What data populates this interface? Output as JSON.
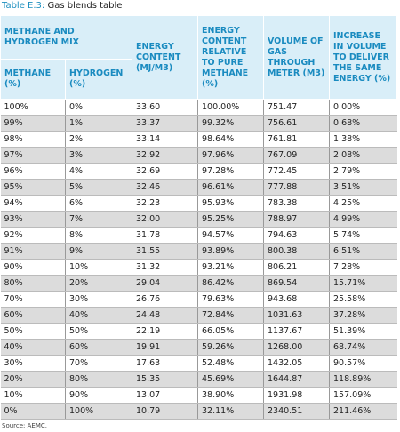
{
  "title": {
    "label": "Table E.3:",
    "text": "Gas blends table"
  },
  "table": {
    "group_header": "METHANE AND HYDROGEN MIX",
    "headers": [
      "METHANE (%)",
      "HYDROGEN (%)",
      "ENERGY CONTENT (MJ/M3)",
      "ENERGY CONTENT RELATIVE TO PURE METHANE (%)",
      "VOLUME OF GAS THROUGH METER (M3)",
      "INCREASE IN VOLUME TO DELIVER THE SAME ENERGY (%)"
    ],
    "rows": [
      [
        "100%",
        "0%",
        "33.60",
        "100.00%",
        "751.47",
        "0.00%"
      ],
      [
        "99%",
        "1%",
        "33.37",
        "99.32%",
        "756.61",
        "0.68%"
      ],
      [
        "98%",
        "2%",
        "33.14",
        "98.64%",
        "761.81",
        "1.38%"
      ],
      [
        "97%",
        "3%",
        "32.92",
        "97.96%",
        "767.09",
        "2.08%"
      ],
      [
        "96%",
        "4%",
        "32.69",
        "97.28%",
        "772.45",
        "2.79%"
      ],
      [
        "95%",
        "5%",
        "32.46",
        "96.61%",
        "777.88",
        "3.51%"
      ],
      [
        "94%",
        "6%",
        "32.23",
        "95.93%",
        "783.38",
        "4.25%"
      ],
      [
        "93%",
        "7%",
        "32.00",
        "95.25%",
        "788.97",
        "4.99%"
      ],
      [
        "92%",
        "8%",
        "31.78",
        "94.57%",
        "794.63",
        "5.74%"
      ],
      [
        "91%",
        "9%",
        "31.55",
        "93.89%",
        "800.38",
        "6.51%"
      ],
      [
        "90%",
        "10%",
        "31.32",
        "93.21%",
        "806.21",
        "7.28%"
      ],
      [
        "80%",
        "20%",
        "29.04",
        "86.42%",
        "869.54",
        "15.71%"
      ],
      [
        "70%",
        "30%",
        "26.76",
        "79.63%",
        "943.68",
        "25.58%"
      ],
      [
        "60%",
        "40%",
        "24.48",
        "72.84%",
        "1031.63",
        "37.28%"
      ],
      [
        "50%",
        "50%",
        "22.19",
        "66.05%",
        "1137.67",
        "51.39%"
      ],
      [
        "40%",
        "60%",
        "19.91",
        "59.26%",
        "1268.00",
        "68.74%"
      ],
      [
        "30%",
        "70%",
        "17.63",
        "52.48%",
        "1432.05",
        "90.57%"
      ],
      [
        "20%",
        "80%",
        "15.35",
        "45.69%",
        "1644.87",
        "118.89%"
      ],
      [
        "10%",
        "90%",
        "13.07",
        "38.90%",
        "1931.98",
        "157.09%"
      ],
      [
        "0%",
        "100%",
        "10.79",
        "32.11%",
        "2340.51",
        "211.46%"
      ]
    ]
  },
  "source": "Source: AEMC."
}
